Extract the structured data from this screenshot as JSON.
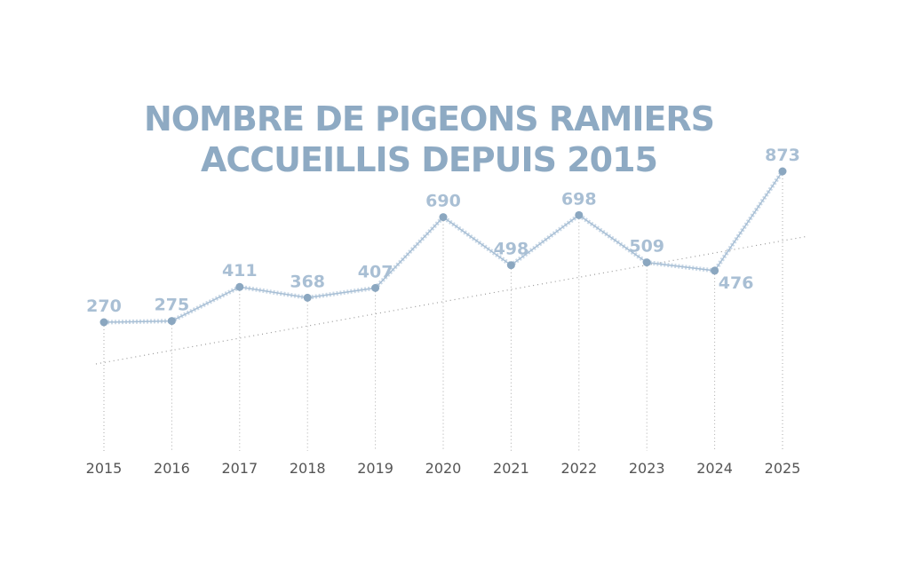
{
  "chart_data": {
    "type": "line",
    "title": [
      "NOMBRE DE PIGEONS RAMIERS",
      "ACCUEILLIS DEPUIS 2015"
    ],
    "categories": [
      "2015",
      "2016",
      "2017",
      "2018",
      "2019",
      "2020",
      "2021",
      "2022",
      "2023",
      "2024",
      "2025"
    ],
    "values": [
      270,
      275,
      411,
      368,
      407,
      690,
      498,
      698,
      509,
      476,
      873
    ],
    "color": "#8ba7c0",
    "label_color": "#a9bfd4",
    "trendline": true
  }
}
